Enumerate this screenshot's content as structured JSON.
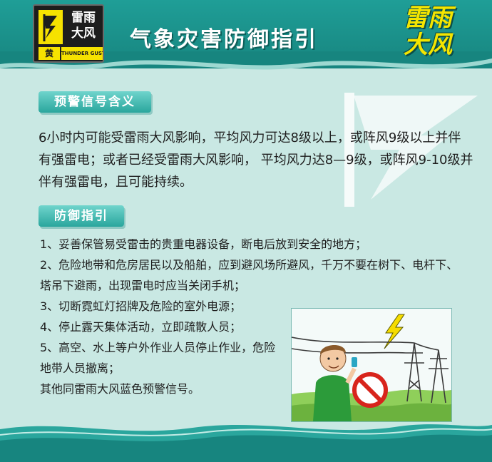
{
  "header": {
    "title": "气象灾害防御指引",
    "corner_title_line1": "雷雨",
    "corner_title_line2": "大风",
    "badge": {
      "cn_line1": "雷雨",
      "cn_line2": "大风",
      "level": "黄",
      "en": "THUNDER GUST",
      "symbol_icon": "lightning-flag-icon"
    }
  },
  "sections": {
    "meaning": {
      "label": "预警信号含义",
      "text": "6小时内可能受雷雨大风影响，平均风力可达8级以上，或阵风9级以上并伴有强雷电；或者已经受雷雨大风影响， 平均风力达8—9级，或阵风9-10级并伴有强雷电，且可能持续。"
    },
    "guide": {
      "label": "防御指引",
      "items": [
        "1、妥善保管易受雷击的贵重电器设备，断电后放到安全的地方；",
        "2、危险地带和危房居民以及船舶，应到避风场所避风，千万不要在树下、电杆下、塔吊下避雨，出现雷电时应当关闭手机；",
        "3、切断霓虹灯招牌及危险的室外电源；",
        "4、停止露天集体活动，立即疏散人员；",
        "5、高空、水上等户外作业人员停止作业，危险地带人员撤离；",
        "其他同雷雨大风蓝色预警信号。"
      ]
    }
  },
  "colors": {
    "header_teal": "#1f9e97",
    "background": "#c9e8e3",
    "badge_yellow": "#f6e200",
    "title_yellow": "#f4e500",
    "section_teal": "#2aa69d"
  },
  "illustration": {
    "icons": [
      "person-phone-icon",
      "no-phone-sign-icon",
      "lightning-bolt-icon",
      "power-tower-icon"
    ]
  }
}
